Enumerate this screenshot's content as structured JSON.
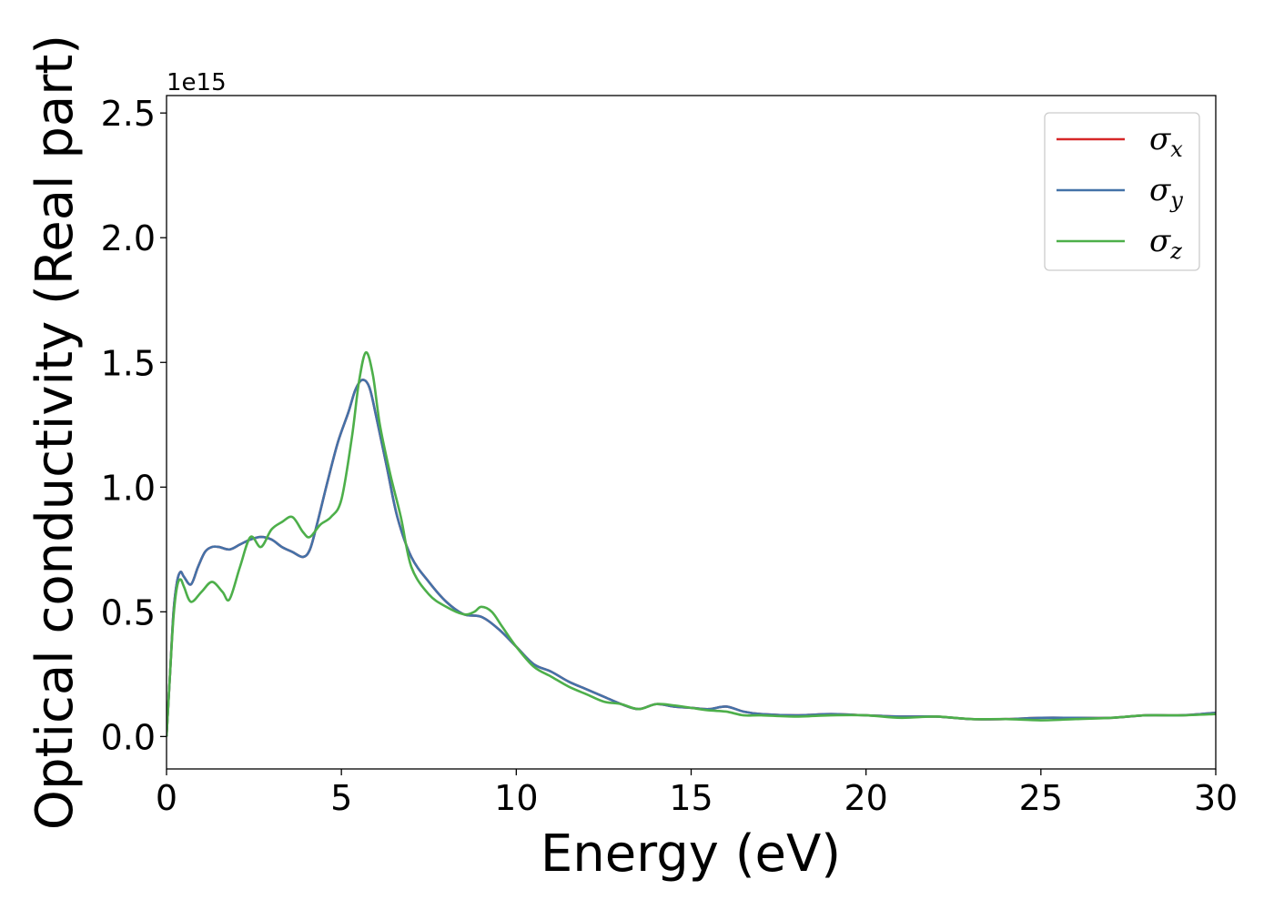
{
  "chart_data": {
    "type": "line",
    "title": "",
    "xlabel": "Energy (eV)",
    "ylabel": "Optical conductivity (Real part)",
    "y_offset_text": "1e15",
    "xlim": [
      0,
      30
    ],
    "ylim": [
      -0.13,
      2.57
    ],
    "x_ticks": [
      0,
      5,
      10,
      15,
      20,
      25,
      30
    ],
    "x_tick_labels": [
      "0",
      "5",
      "10",
      "15",
      "20",
      "25",
      "30"
    ],
    "y_ticks": [
      0.0,
      0.5,
      1.0,
      1.5,
      2.0,
      2.5
    ],
    "y_tick_labels": [
      "0.0",
      "0.5",
      "1.0",
      "1.5",
      "2.0",
      "2.5"
    ],
    "grid": false,
    "legend_position": "top-right",
    "series": [
      {
        "name": "σx",
        "symbol": "σ",
        "subscript": "x",
        "color": "#d62728",
        "x": [
          0,
          0.1,
          0.2,
          0.3,
          0.4,
          0.5,
          0.7,
          0.9,
          1.1,
          1.3,
          1.5,
          1.8,
          2.1,
          2.4,
          2.7,
          3.0,
          3.3,
          3.6,
          3.9,
          4.1,
          4.3,
          4.6,
          4.9,
          5.2,
          5.4,
          5.6,
          5.8,
          6.0,
          6.3,
          6.6,
          7.0,
          7.5,
          8.0,
          8.5,
          9.0,
          9.5,
          10.0,
          10.5,
          11.0,
          11.5,
          12.0,
          12.5,
          13.0,
          13.5,
          14.0,
          14.5,
          15.0,
          15.5,
          16.0,
          16.5,
          17.0,
          18.0,
          19.0,
          20.0,
          21.0,
          22.0,
          23.0,
          24.0,
          25.0,
          26.0,
          27.0,
          28.0,
          29.0,
          30.0
        ],
        "y": [
          0.0,
          0.25,
          0.5,
          0.62,
          0.66,
          0.64,
          0.61,
          0.68,
          0.74,
          0.76,
          0.76,
          0.75,
          0.77,
          0.79,
          0.8,
          0.79,
          0.76,
          0.74,
          0.72,
          0.75,
          0.85,
          1.02,
          1.18,
          1.3,
          1.39,
          1.43,
          1.4,
          1.28,
          1.08,
          0.88,
          0.72,
          0.62,
          0.54,
          0.49,
          0.48,
          0.43,
          0.36,
          0.29,
          0.26,
          0.22,
          0.19,
          0.16,
          0.13,
          0.11,
          0.13,
          0.12,
          0.115,
          0.11,
          0.12,
          0.1,
          0.09,
          0.085,
          0.09,
          0.085,
          0.08,
          0.08,
          0.07,
          0.07,
          0.075,
          0.075,
          0.075,
          0.085,
          0.085,
          0.095
        ]
      },
      {
        "name": "σy",
        "symbol": "σ",
        "subscript": "y",
        "color": "#4472a8",
        "x": [
          0,
          0.1,
          0.2,
          0.3,
          0.4,
          0.5,
          0.7,
          0.9,
          1.1,
          1.3,
          1.5,
          1.8,
          2.1,
          2.4,
          2.7,
          3.0,
          3.3,
          3.6,
          3.9,
          4.1,
          4.3,
          4.6,
          4.9,
          5.2,
          5.4,
          5.6,
          5.8,
          6.0,
          6.3,
          6.6,
          7.0,
          7.5,
          8.0,
          8.5,
          9.0,
          9.5,
          10.0,
          10.5,
          11.0,
          11.5,
          12.0,
          12.5,
          13.0,
          13.5,
          14.0,
          14.5,
          15.0,
          15.5,
          16.0,
          16.5,
          17.0,
          18.0,
          19.0,
          20.0,
          21.0,
          22.0,
          23.0,
          24.0,
          25.0,
          26.0,
          27.0,
          28.0,
          29.0,
          30.0
        ],
        "y": [
          0.0,
          0.25,
          0.5,
          0.62,
          0.66,
          0.64,
          0.61,
          0.68,
          0.74,
          0.76,
          0.76,
          0.75,
          0.77,
          0.79,
          0.8,
          0.79,
          0.76,
          0.74,
          0.72,
          0.75,
          0.85,
          1.02,
          1.18,
          1.3,
          1.39,
          1.43,
          1.4,
          1.28,
          1.08,
          0.88,
          0.72,
          0.62,
          0.54,
          0.49,
          0.48,
          0.43,
          0.36,
          0.29,
          0.26,
          0.22,
          0.19,
          0.16,
          0.13,
          0.11,
          0.13,
          0.12,
          0.115,
          0.11,
          0.12,
          0.1,
          0.09,
          0.085,
          0.09,
          0.085,
          0.08,
          0.08,
          0.07,
          0.07,
          0.075,
          0.075,
          0.075,
          0.085,
          0.085,
          0.095
        ]
      },
      {
        "name": "σz",
        "symbol": "σ",
        "subscript": "z",
        "color": "#4daf4a",
        "x": [
          0,
          0.1,
          0.2,
          0.3,
          0.4,
          0.5,
          0.7,
          1.0,
          1.3,
          1.6,
          1.8,
          2.1,
          2.4,
          2.7,
          3.0,
          3.3,
          3.6,
          3.9,
          4.1,
          4.4,
          4.7,
          5.0,
          5.3,
          5.5,
          5.7,
          5.9,
          6.1,
          6.4,
          6.7,
          7.0,
          7.5,
          8.0,
          8.5,
          8.8,
          9.0,
          9.3,
          9.6,
          10.0,
          10.5,
          11.0,
          11.5,
          12.0,
          12.5,
          13.0,
          13.5,
          14.0,
          14.5,
          15.0,
          15.5,
          16.0,
          16.5,
          17.0,
          18.0,
          19.0,
          20.0,
          21.0,
          22.0,
          23.0,
          24.0,
          25.0,
          26.0,
          27.0,
          28.0,
          29.0,
          30.0
        ],
        "y": [
          0.0,
          0.25,
          0.48,
          0.6,
          0.63,
          0.6,
          0.54,
          0.58,
          0.62,
          0.58,
          0.55,
          0.68,
          0.8,
          0.76,
          0.83,
          0.86,
          0.88,
          0.82,
          0.8,
          0.85,
          0.88,
          0.95,
          1.2,
          1.42,
          1.54,
          1.45,
          1.25,
          1.05,
          0.88,
          0.68,
          0.57,
          0.52,
          0.49,
          0.5,
          0.52,
          0.5,
          0.44,
          0.36,
          0.28,
          0.24,
          0.2,
          0.17,
          0.14,
          0.13,
          0.11,
          0.13,
          0.125,
          0.115,
          0.105,
          0.1,
          0.085,
          0.085,
          0.08,
          0.085,
          0.085,
          0.075,
          0.08,
          0.07,
          0.07,
          0.065,
          0.07,
          0.075,
          0.085,
          0.085,
          0.09
        ]
      }
    ]
  }
}
